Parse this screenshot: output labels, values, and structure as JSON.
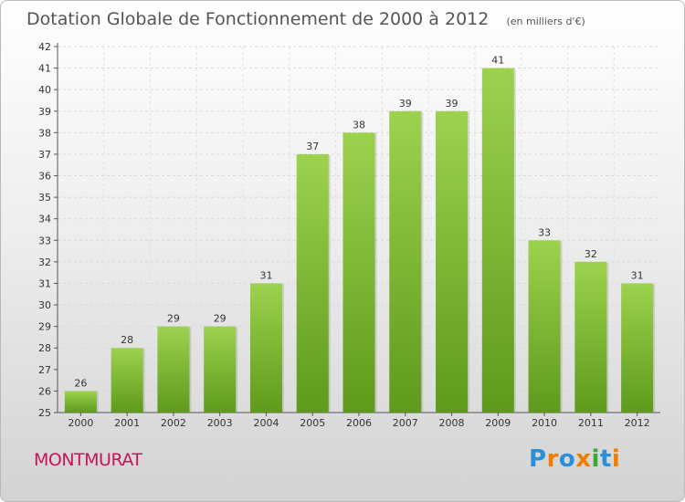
{
  "header": {
    "title": "Dotation Globale de Fonctionnement de 2000 à 2012",
    "subtitle": "(en milliers d'€)"
  },
  "footer": {
    "commune": "MONTMURAT",
    "logo_text": "Proxiti",
    "logo_colors": [
      "#2a8fd8",
      "#f07d00",
      "#2a8fd8",
      "#f07d00",
      "#38a838",
      "#2a8fd8",
      "#f07d00"
    ]
  },
  "chart_data": {
    "type": "bar",
    "title": "Dotation Globale de Fonctionnement de 2000 à 2012",
    "subtitle": "(en milliers d'€)",
    "xlabel": "",
    "ylabel": "",
    "categories": [
      "2000",
      "2001",
      "2002",
      "2003",
      "2004",
      "2005",
      "2006",
      "2007",
      "2008",
      "2009",
      "2010",
      "2011",
      "2012"
    ],
    "values": [
      26,
      28,
      29,
      29,
      31,
      37,
      38,
      39,
      39,
      41,
      33,
      32,
      31
    ],
    "ylim": [
      25,
      42
    ],
    "yticks": [
      25,
      26,
      27,
      28,
      29,
      30,
      31,
      32,
      33,
      34,
      35,
      36,
      37,
      38,
      39,
      40,
      41,
      42
    ],
    "grid": true,
    "bar_color": "#8cc63e",
    "bar_color_dark": "#5f9a1c"
  }
}
